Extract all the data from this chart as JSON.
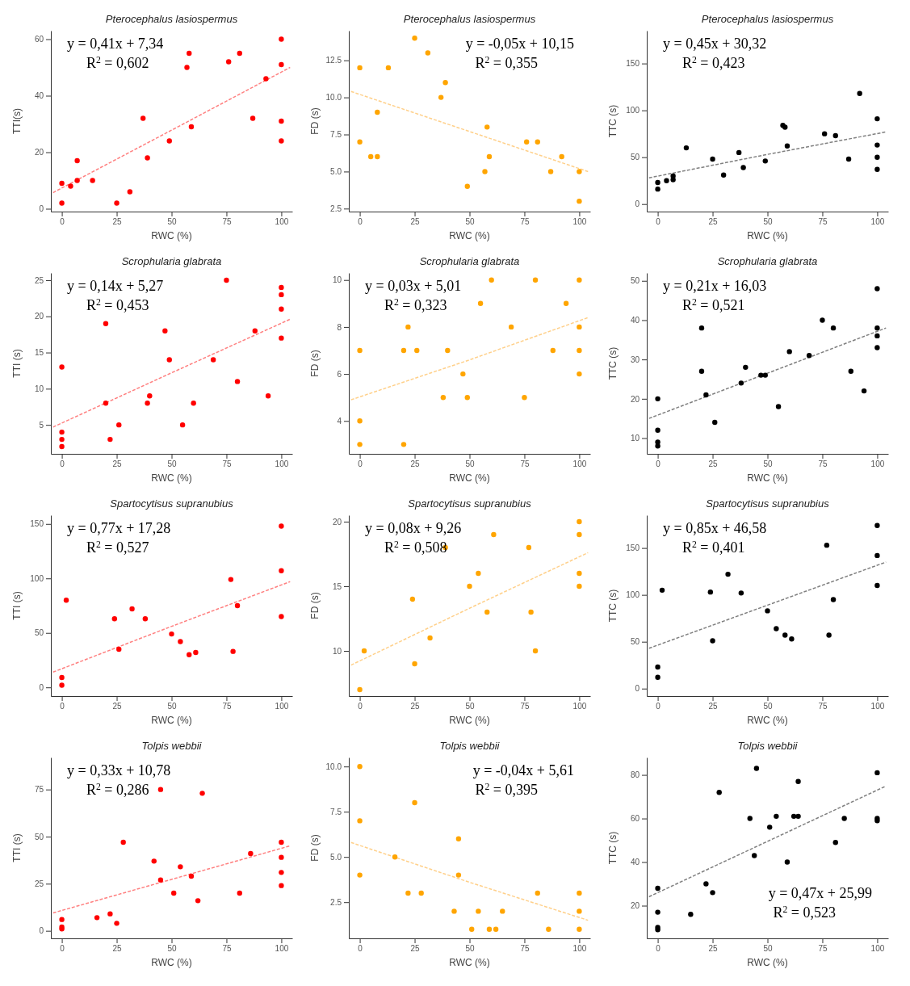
{
  "chart_data": [
    {
      "type": "scatter",
      "title": "Pterocephalus lasiospermus",
      "xlabel": "RWC (%)",
      "ylabel": "TTI(s)",
      "xlim": [
        -5,
        105
      ],
      "xticks": [
        0,
        25,
        50,
        75,
        100
      ],
      "ylim": [
        -1,
        63
      ],
      "yticks": [
        0,
        20,
        40,
        60
      ],
      "annotations": [
        "y = 0,41x + 7,34",
        "R$^{2}$ = 0,602"
      ],
      "x": [
        0,
        0,
        4,
        7,
        7,
        14,
        25,
        31,
        37,
        39,
        49,
        57,
        58,
        59,
        76,
        81,
        87,
        93,
        100,
        100,
        100,
        100
      ],
      "series": [
        {
          "type": "scatter",
          "color": "#ff0000",
          "values": [
            9,
            2,
            8,
            17,
            10,
            10,
            2,
            6,
            32,
            18,
            24,
            50,
            55,
            29,
            52,
            55,
            32,
            46,
            60,
            51,
            31,
            24
          ]
        },
        {
          "type": "line",
          "color": "#ff8080",
          "line_style": "dashed",
          "x": [
            -4,
            50,
            104
          ],
          "values": [
            5.7,
            27.8,
            50
          ]
        }
      ]
    },
    {
      "type": "scatter",
      "title": "Pterocephalus lasiospermus",
      "xlabel": "RWC (%)",
      "ylabel": "FD (s)",
      "xlim": [
        -5,
        105
      ],
      "xticks": [
        0,
        25,
        50,
        75,
        100
      ],
      "ylim": [
        2.3,
        14.5
      ],
      "yticks": [
        {
          "value": 2.5,
          "label": "2.5"
        },
        {
          "value": 5,
          "label": "5.0"
        },
        {
          "value": 7.5,
          "label": "7.5"
        },
        {
          "value": 10,
          "label": "10.0"
        },
        {
          "value": 12.5,
          "label": "12.5"
        }
      ],
      "annotations": [
        "y = -0,05x + 10,15",
        "R$^{2}$ = 0,355"
      ],
      "x": [
        0,
        0,
        5,
        8,
        8,
        13,
        25,
        31,
        37,
        39,
        49,
        57,
        58,
        59,
        76,
        81,
        87,
        92,
        100,
        100
      ],
      "series": [
        {
          "type": "scatter",
          "color": "#ffa500",
          "values": [
            12,
            7,
            6,
            6,
            9,
            12,
            14,
            13,
            10,
            11,
            4,
            5,
            8,
            6,
            7,
            7,
            5,
            6,
            5,
            3
          ]
        },
        {
          "type": "line",
          "color": "#ffd08a",
          "line_style": "dashed",
          "x": [
            -4,
            50,
            104
          ],
          "values": [
            10.4,
            7.7,
            5
          ]
        }
      ]
    },
    {
      "type": "scatter",
      "title": "Pterocephalus lasiospermus",
      "xlabel": "RWC (%)",
      "ylabel": "TTC (s)",
      "xlim": [
        -5,
        105
      ],
      "xticks": [
        0,
        25,
        50,
        75,
        100
      ],
      "ylim": [
        -8,
        185
      ],
      "yticks": [
        0,
        50,
        100,
        150
      ],
      "annotations": [
        "y = 0,45x + 30,32",
        "R$^{2}$ = 0,423"
      ],
      "x": [
        0,
        0,
        4,
        7,
        7,
        13,
        25,
        30,
        37,
        39,
        49,
        57,
        58,
        59,
        76,
        81,
        87,
        92,
        100,
        100,
        100,
        100
      ],
      "series": [
        {
          "type": "scatter",
          "color": "#000000",
          "values": [
            23,
            16,
            25,
            30,
            26,
            60,
            48,
            31,
            55,
            39,
            46,
            84,
            82,
            62,
            75,
            73,
            48,
            118,
            91,
            63,
            50,
            37
          ]
        },
        {
          "type": "line",
          "color": "#808080",
          "line_style": "dashed",
          "x": [
            -4,
            50,
            104
          ],
          "values": [
            28,
            53,
            77
          ]
        }
      ]
    },
    {
      "type": "scatter",
      "title": "Scrophularia glabrata",
      "xlabel": "RWC (%)",
      "ylabel": "TTI (s)",
      "xlim": [
        -5,
        105
      ],
      "xticks": [
        0,
        25,
        50,
        75,
        100
      ],
      "ylim": [
        1,
        26
      ],
      "yticks": [
        5,
        10,
        15,
        20,
        25
      ],
      "annotations": [
        "y = 0,14x + 5,27",
        "R$^{2}$ = 0,453"
      ],
      "x": [
        0,
        0,
        0,
        0,
        20,
        20,
        22,
        26,
        39,
        40,
        47,
        49,
        55,
        60,
        69,
        75,
        80,
        88,
        94,
        100,
        100,
        100,
        100
      ],
      "series": [
        {
          "type": "scatter",
          "color": "#ff0000",
          "values": [
            13,
            4,
            3,
            2,
            19,
            8,
            3,
            5,
            8,
            9,
            18,
            14,
            5,
            8,
            14,
            25,
            11,
            18,
            9,
            24,
            23,
            21,
            17
          ]
        },
        {
          "type": "line",
          "color": "#ff8080",
          "line_style": "dashed",
          "x": [
            -4,
            50,
            104
          ],
          "values": [
            4.7,
            12.2,
            19.6
          ]
        }
      ]
    },
    {
      "type": "scatter",
      "title": "Scrophularia glabrata",
      "xlabel": "RWC (%)",
      "ylabel": "FD (s)",
      "xlim": [
        -5,
        105
      ],
      "xticks": [
        0,
        25,
        50,
        75,
        100
      ],
      "ylim": [
        2.6,
        10.3
      ],
      "yticks": [
        4,
        6,
        8,
        10
      ],
      "annotations": [
        "y = 0,03x + 5,01",
        "R$^{2}$ = 0,323"
      ],
      "x": [
        0,
        0,
        0,
        20,
        20,
        22,
        26,
        38,
        40,
        47,
        49,
        55,
        60,
        69,
        75,
        80,
        88,
        94,
        100,
        100,
        100,
        100
      ],
      "series": [
        {
          "type": "scatter",
          "color": "#ffa500",
          "values": [
            7,
            4,
            3,
            7,
            3,
            8,
            7,
            5,
            7,
            6,
            5,
            9,
            10,
            8,
            5,
            10,
            7,
            9,
            10,
            8,
            7,
            6
          ]
        },
        {
          "type": "line",
          "color": "#ffd08a",
          "line_style": "dashed",
          "x": [
            -4,
            50,
            104
          ],
          "values": [
            4.9,
            6.6,
            8.4
          ]
        }
      ]
    },
    {
      "type": "scatter",
      "title": "Scrophularia glabrata",
      "xlabel": "RWC (%)",
      "ylabel": "TTC (s)",
      "xlim": [
        -5,
        105
      ],
      "xticks": [
        0,
        25,
        50,
        75,
        100
      ],
      "ylim": [
        6,
        52
      ],
      "yticks": [
        10,
        20,
        30,
        40,
        50
      ],
      "annotations": [
        "y = 0,21x + 16,03",
        "R$^{2}$ = 0,521"
      ],
      "x": [
        0,
        0,
        0,
        0,
        20,
        20,
        22,
        26,
        38,
        40,
        47,
        49,
        55,
        60,
        69,
        75,
        80,
        88,
        94,
        100,
        100,
        100,
        100
      ],
      "series": [
        {
          "type": "scatter",
          "color": "#000000",
          "values": [
            20,
            12,
            9,
            8,
            38,
            27,
            21,
            14,
            24,
            28,
            26,
            26,
            18,
            32,
            31,
            40,
            38,
            27,
            22,
            48,
            38,
            36,
            33
          ]
        },
        {
          "type": "line",
          "color": "#808080",
          "line_style": "dashed",
          "x": [
            -4,
            50,
            104
          ],
          "values": [
            15,
            26.5,
            38
          ]
        }
      ]
    },
    {
      "type": "scatter",
      "title": "Spartocytisus supranubius",
      "xlabel": "RWC (%)",
      "ylabel": "TTI (s)",
      "xlim": [
        -5,
        105
      ],
      "xticks": [
        0,
        25,
        50,
        75,
        100
      ],
      "ylim": [
        -8,
        158
      ],
      "yticks": [
        0,
        50,
        100,
        150
      ],
      "annotations": [
        "y = 0,77x + 17,28",
        "R$^{2}$ = 0,527"
      ],
      "x": [
        0,
        0,
        2,
        24,
        26,
        32,
        38,
        50,
        54,
        58,
        61,
        77,
        78,
        80,
        100,
        100,
        100
      ],
      "series": [
        {
          "type": "scatter",
          "color": "#ff0000",
          "values": [
            9,
            2,
            80,
            63,
            35,
            72,
            63,
            49,
            42,
            30,
            32,
            99,
            33,
            75,
            148,
            107,
            65
          ]
        },
        {
          "type": "line",
          "color": "#ff8080",
          "line_style": "dashed",
          "x": [
            -4,
            50,
            104
          ],
          "values": [
            14,
            56,
            97
          ]
        }
      ]
    },
    {
      "type": "scatter",
      "title": "Spartocytisus supranubius",
      "xlabel": "RWC (%)",
      "ylabel": "FD (s)",
      "xlim": [
        -5,
        105
      ],
      "xticks": [
        0,
        25,
        50,
        75,
        100
      ],
      "ylim": [
        6.5,
        20.5
      ],
      "yticks": [
        10,
        15,
        20
      ],
      "annotations": [
        "y = 0,08x + 9,26",
        "R$^{2}$ = 0,508"
      ],
      "x": [
        0,
        2,
        24,
        25,
        32,
        39,
        50,
        54,
        58,
        61,
        77,
        78,
        80,
        100,
        100,
        100,
        100
      ],
      "series": [
        {
          "type": "scatter",
          "color": "#ffa500",
          "values": [
            7,
            10,
            14,
            9,
            11,
            18,
            15,
            16,
            13,
            19,
            18,
            13,
            10,
            20,
            19,
            16,
            15
          ]
        },
        {
          "type": "line",
          "color": "#ffd08a",
          "line_style": "dashed",
          "x": [
            -4,
            50,
            104
          ],
          "values": [
            8.9,
            13.3,
            17.6
          ]
        }
      ]
    },
    {
      "type": "scatter",
      "title": "Spartocytisus supranubius",
      "xlabel": "RWC (%)",
      "ylabel": "TTC (s)",
      "xlim": [
        -5,
        105
      ],
      "xticks": [
        0,
        25,
        50,
        75,
        100
      ],
      "ylim": [
        -8,
        185
      ],
      "yticks": [
        0,
        50,
        100,
        150
      ],
      "annotations": [
        "y = 0,85x + 46,58",
        "R$^{2}$ = 0,401"
      ],
      "x": [
        0,
        0,
        2,
        24,
        25,
        32,
        38,
        50,
        54,
        58,
        61,
        77,
        78,
        80,
        100,
        100,
        100
      ],
      "series": [
        {
          "type": "scatter",
          "color": "#000000",
          "values": [
            23,
            12,
            105,
            103,
            51,
            122,
            102,
            83,
            64,
            57,
            53,
            153,
            57,
            95,
            174,
            142,
            110
          ]
        },
        {
          "type": "line",
          "color": "#808080",
          "line_style": "dashed",
          "x": [
            -4,
            50,
            104
          ],
          "values": [
            43,
            89,
            135
          ]
        }
      ]
    },
    {
      "type": "scatter",
      "title": "Tolpis webbii",
      "xlabel": "RWC (%)",
      "ylabel": "TTI (s)",
      "xlim": [
        -5,
        105
      ],
      "xticks": [
        0,
        25,
        50,
        75,
        100
      ],
      "ylim": [
        -4,
        92
      ],
      "yticks": [
        0,
        25,
        50,
        75
      ],
      "annotations": [
        "y = 0,33x + 10,78",
        "R$^{2}$ = 0,286"
      ],
      "x": [
        0,
        0,
        0,
        16,
        22,
        25,
        28,
        42,
        45,
        45,
        54,
        51,
        59,
        62,
        64,
        81,
        86,
        100,
        100,
        100,
        100
      ],
      "series": [
        {
          "type": "scatter",
          "color": "#ff0000",
          "values": [
            6,
            2,
            1,
            7,
            9,
            4,
            47,
            37,
            75,
            27,
            34,
            20,
            29,
            16,
            73,
            20,
            41,
            47,
            39,
            31,
            24
          ]
        },
        {
          "type": "line",
          "color": "#ff8080",
          "line_style": "dashed",
          "x": [
            -4,
            50,
            104
          ],
          "values": [
            9.5,
            27.3,
            45.1
          ]
        }
      ]
    },
    {
      "type": "scatter",
      "title": "Tolpis webbii",
      "xlabel": "RWC (%)",
      "ylabel": "FD (s)",
      "xlim": [
        -5,
        105
      ],
      "xticks": [
        0,
        25,
        50,
        75,
        100
      ],
      "ylim": [
        0.5,
        10.5
      ],
      "yticks": [
        {
          "value": 2.5,
          "label": "2.5"
        },
        {
          "value": 5,
          "label": "5.0"
        },
        {
          "value": 7.5,
          "label": "7.5"
        },
        {
          "value": 10,
          "label": "10.0"
        }
      ],
      "annotations": [
        "y = -0,04x + 5,61",
        "R$^{2}$ = 0,395"
      ],
      "x": [
        0,
        0,
        0,
        16,
        22,
        25,
        28,
        43,
        45,
        45,
        51,
        54,
        59,
        62,
        65,
        81,
        86,
        100,
        100,
        100
      ],
      "series": [
        {
          "type": "scatter",
          "color": "#ffa500",
          "values": [
            10,
            7,
            4,
            5,
            3,
            8,
            3,
            2,
            6,
            4,
            1,
            2,
            1,
            1,
            2,
            3,
            1,
            3,
            2,
            1
          ]
        },
        {
          "type": "line",
          "color": "#ffd08a",
          "line_style": "dashed",
          "x": [
            -4,
            50,
            104
          ],
          "values": [
            5.8,
            3.6,
            1.5
          ]
        }
      ]
    },
    {
      "type": "scatter",
      "title": "Tolpis webbii",
      "xlabel": "RWC (%)",
      "ylabel": "TTC (s)",
      "xlim": [
        -5,
        105
      ],
      "xticks": [
        0,
        25,
        50,
        75,
        100
      ],
      "ylim": [
        5,
        88
      ],
      "yticks": [
        20,
        40,
        60,
        80
      ],
      "annotations": [
        "y = 0,47x + 25,99",
        "R$^{2}$ = 0,523"
      ],
      "x": [
        0,
        0,
        0,
        0,
        15,
        22,
        25,
        28,
        42,
        44,
        45,
        51,
        54,
        59,
        62,
        64,
        64,
        81,
        85,
        100,
        100,
        100
      ],
      "series": [
        {
          "type": "scatter",
          "color": "#000000",
          "values": [
            28,
            17,
            10,
            9,
            16,
            30,
            26,
            72,
            60,
            43,
            83,
            56,
            61,
            40,
            61,
            61,
            77,
            49,
            60,
            81,
            60,
            59
          ]
        },
        {
          "type": "line",
          "color": "#808080",
          "line_style": "dashed",
          "x": [
            -4,
            50,
            104
          ],
          "values": [
            24.1,
            49.5,
            74.9
          ]
        }
      ]
    }
  ]
}
